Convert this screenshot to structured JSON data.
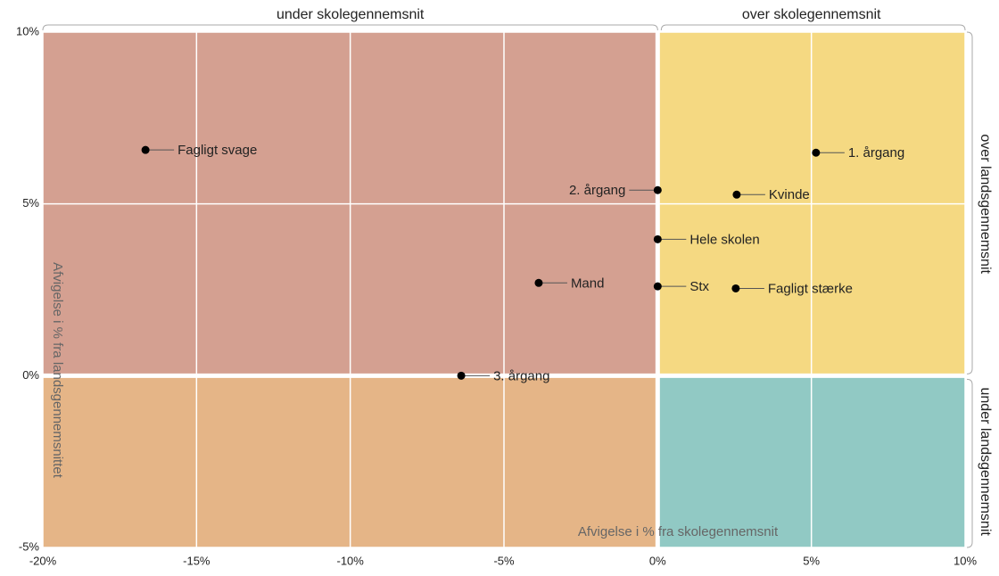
{
  "chart_data": {
    "type": "scatter",
    "x": [
      -16.66,
      0,
      5.15,
      2.57,
      0,
      -3.87,
      0,
      2.54,
      -6.39
    ],
    "values": [
      6.57,
      5.4,
      6.49,
      5.27,
      3.97,
      2.7,
      2.6,
      2.54,
      0
    ],
    "point_labels": [
      "Fagligt svage",
      "2. årgang",
      "1. årgang",
      "Kvinde",
      "Hele skolen",
      "Mand",
      "Stx",
      "Fagligt stærke",
      "3. årgang"
    ],
    "color": "#000000",
    "xlim": [
      -20,
      10
    ],
    "ylim": [
      -5,
      10
    ],
    "xticks": [
      {
        "value": -20,
        "label": "-20%"
      },
      {
        "value": -15,
        "label": "-15%"
      },
      {
        "value": -10,
        "label": "-10%"
      },
      {
        "value": -5,
        "label": "-5%"
      },
      {
        "value": 0,
        "label": "0%"
      },
      {
        "value": 5,
        "label": "5%"
      },
      {
        "value": 10,
        "label": "10%"
      }
    ],
    "yticks": [
      {
        "value": -5,
        "label": "-5%"
      },
      {
        "value": 0,
        "label": "0%"
      },
      {
        "value": 5,
        "label": "5%"
      },
      {
        "value": 10,
        "label": "10%"
      }
    ],
    "grid": true,
    "xlabel": "Afvigelse i % fra skolegennemsnit",
    "ylabel": "Afvigelse i % fra landsgennemsnittet",
    "top_left_label": "under skolegennemsnit",
    "top_right_label": "over skolegennemsnit",
    "right_top_label": "over landsgennemsnit",
    "right_bottom_label": "under landsgennemsnit",
    "quadrant_colors": {
      "upper_left": "#d4a091",
      "lower_left": "#e5b587",
      "upper_right": "#f5d982",
      "lower_right": "#91c9c4"
    }
  }
}
